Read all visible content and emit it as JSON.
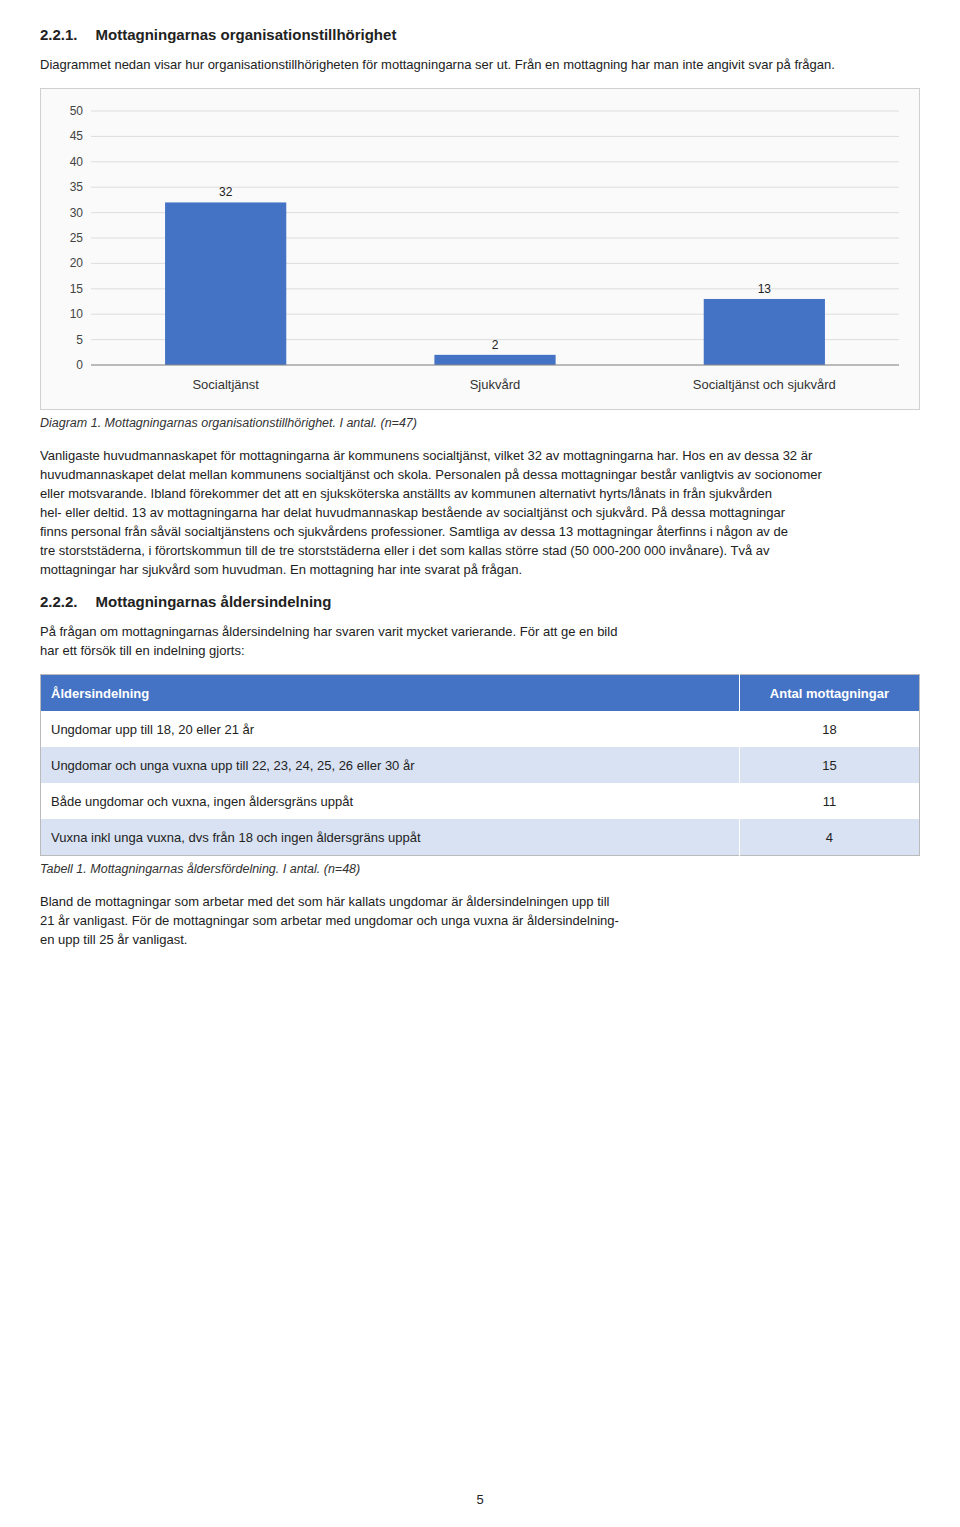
{
  "chart_data": {
    "type": "bar",
    "title": "Diagram 1. Mottagningarnas organisationstillhörighet. I antal. (n=47)",
    "categories": [
      "Socialtjänst",
      "Sjukvård",
      "Socialtjänst och sjukvård"
    ],
    "values": [
      32,
      2,
      13
    ],
    "color": "#4472C4",
    "ylim": [
      0,
      50
    ],
    "yticks": [
      0,
      5,
      10,
      15,
      20,
      25,
      30,
      35,
      40,
      45,
      50
    ],
    "grid": true,
    "data_labels": true
  },
  "page": {
    "heading1": [
      "2.2.1.",
      "Mottagningarnas organisationstillhörighet"
    ],
    "intro1": [
      "Diagrammet nedan visar hur organisationstillhörigheten för mottagningarna ser ut. Från en mottagning har man inte angivit svar på frågan."
    ],
    "body_text1": [
      "Vanligaste huvudmannaskapet för mottagningarna är kommunens socialtjänst, vilket 32 av mottagningarna har. Hos en av dessa 32 är",
      "huvudmannaskapet delat mellan kommunens socialtjänst och skola. Personalen på dessa mottagningar består vanligtvis av socionomer",
      "eller motsvarande. Ibland förekommer det att en sjuksköterska anställts av kommunen alternativt hyrts/lånats in från sjukvården",
      "hel- eller deltid. 13 av mottagningarna har delat huvudmannaskap bestående av socialtjänst och sjukvård. På dessa mottagningar",
      "finns personal från såväl socialtjänstens och sjukvårdens professioner. Samtliga av dessa 13 mottagningar återfinns i någon av de",
      "tre storststäderna, i förortskommun till de tre storststäderna eller i det som kallas större stad (50 000-200 000 invånare). Två av",
      "mottagningar har sjukvård som huvudman. En mottagning har inte svarat på frågan."
    ],
    "heading2": [
      "2.2.2.",
      "Mottagningarnas åldersindelning"
    ],
    "intro2": [
      "På frågan om mottagningarnas åldersindelning har svaren varit mycket varierande. För att ge en bild",
      "har ett försök till en indelning gjorts:"
    ],
    "table": {
      "header": [
        "Åldersindelning",
        "Antal mottagningar"
      ],
      "rows": [
        [
          "Ungdomar upp till 18, 20 eller 21 år",
          "18"
        ],
        [
          "Ungdomar och unga vuxna upp till 22, 23, 24, 25, 26 eller 30 år",
          "15"
        ],
        [
          "Både ungdomar och vuxna, ingen åldersgräns uppåt",
          "11"
        ],
        [
          "Vuxna inkl unga vuxna, dvs från 18 och ingen åldersgräns uppåt",
          "4"
        ]
      ],
      "header_color": "#4472C4",
      "row_colors": [
        "#FFFFFF",
        "#D9E2F3",
        "#FFFFFF",
        "#D9E2F3"
      ],
      "caption": "Tabell 1. Mottagningarnas åldersfördelning. I antal. (n=48)"
    },
    "body_text2": [
      "Bland de mottagningar som arbetar med det som här kallats ungdomar är åldersindelningen upp till",
      "21 år vanligast. För de mottagningar som arbetar med ungdomar och unga vuxna är åldersindelning-",
      "en upp till 25 år vanligast."
    ],
    "page_number": "5"
  }
}
